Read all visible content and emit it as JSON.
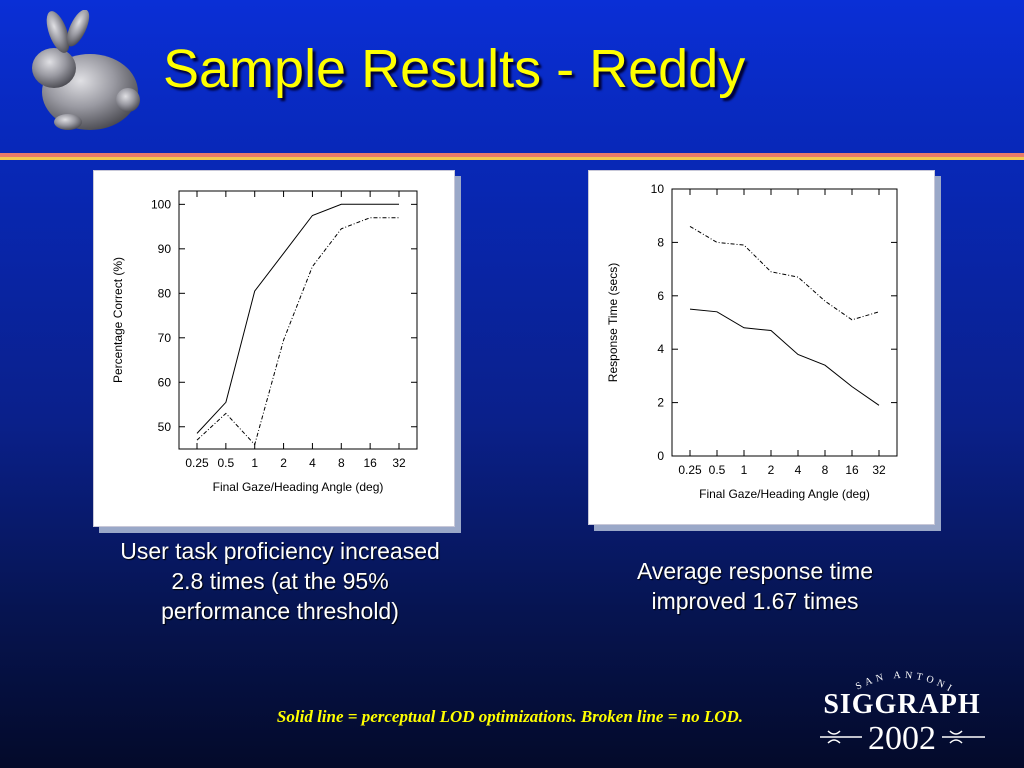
{
  "slide": {
    "title": "Sample Results - Reddy",
    "caption_left_lines": [
      "User task proficiency increased",
      "2.8 times (at the 95%",
      "performance threshold)"
    ],
    "caption_right_lines": [
      "Average response time",
      "improved 1.67 times"
    ],
    "footnote": "Solid line = perceptual LOD optimizations.  Broken line = no LOD.",
    "logo": {
      "top_text": "SAN ANTONIO",
      "name": "SIGGRAPH",
      "year": "2002"
    }
  },
  "chart_data": [
    {
      "type": "line",
      "xlabel": "Final Gaze/Heading Angle (deg)",
      "ylabel": "Percentage Correct (%)",
      "categories": [
        "0.25",
        "0.5",
        "1",
        "2",
        "4",
        "8",
        "16",
        "32"
      ],
      "ylim": [
        45,
        103
      ],
      "yticks": [
        50,
        60,
        70,
        80,
        90,
        100
      ],
      "grid": false,
      "series": [
        {
          "style": "solid",
          "values": [
            48.5,
            55.5,
            80.5,
            89,
            97.5,
            100,
            100,
            100
          ]
        },
        {
          "style": "dashed",
          "values": [
            47,
            53,
            46,
            69.5,
            86,
            94.5,
            97,
            97
          ]
        }
      ]
    },
    {
      "type": "line",
      "xlabel": "Final Gaze/Heading Angle (deg)",
      "ylabel": "Response Time (secs)",
      "categories": [
        "0.25",
        "0.5",
        "1",
        "2",
        "4",
        "8",
        "16",
        "32"
      ],
      "ylim": [
        0,
        10
      ],
      "yticks": [
        0,
        2,
        4,
        6,
        8,
        10
      ],
      "grid": false,
      "series": [
        {
          "style": "solid",
          "values": [
            5.5,
            5.4,
            4.8,
            4.7,
            3.8,
            3.4,
            2.6,
            1.9
          ]
        },
        {
          "style": "dashed",
          "values": [
            8.6,
            8.0,
            7.9,
            6.9,
            6.7,
            5.8,
            5.1,
            5.4
          ]
        }
      ]
    }
  ]
}
